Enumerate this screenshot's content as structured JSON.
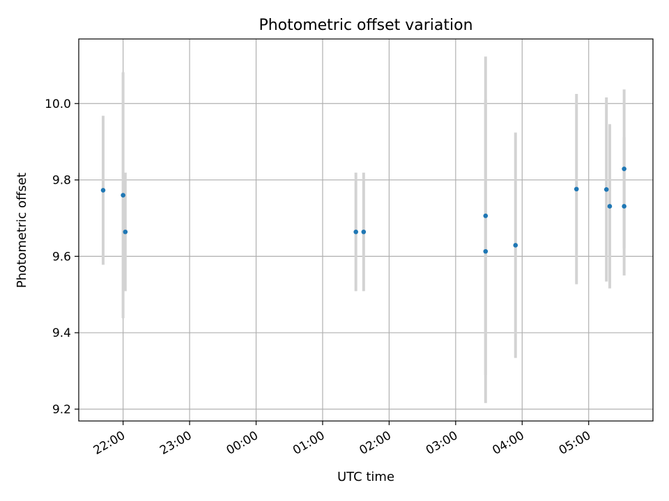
{
  "chart_data": {
    "type": "scatter",
    "title": "Photometric offset variation",
    "xlabel": "UTC time",
    "ylabel": "Photometric offset",
    "x_tick_labels": [
      "22:00",
      "23:00",
      "00:00",
      "01:00",
      "02:00",
      "03:00",
      "04:00",
      "05:00"
    ],
    "y_ticks": [
      9.2,
      9.4,
      9.6,
      9.8,
      10.0
    ],
    "y_tick_labels": [
      "9.2",
      "9.4",
      "9.6",
      "9.8",
      "10.0"
    ],
    "grid": true,
    "colors": {
      "marker": "#1f77b4",
      "errorbar": "#d3d3d3",
      "grid": "#b0b0b0"
    },
    "series": [
      {
        "points": [
          {
            "x": "21:42",
            "y": 9.773,
            "yerr": 0.195
          },
          {
            "x": "22:00",
            "y": 9.76,
            "yerr": 0.322
          },
          {
            "x": "22:02",
            "y": 9.664,
            "yerr": 0.155
          },
          {
            "x": "01:30",
            "y": 9.664,
            "yerr": 0.155
          },
          {
            "x": "01:37",
            "y": 9.664,
            "yerr": 0.155
          },
          {
            "x": "03:27",
            "y": 9.706,
            "yerr": 0.417
          },
          {
            "x": "03:27",
            "y": 9.613,
            "yerr": 0.397
          },
          {
            "x": "03:54",
            "y": 9.629,
            "yerr": 0.295
          },
          {
            "x": "04:49",
            "y": 9.776,
            "yerr": 0.249
          },
          {
            "x": "05:16",
            "y": 9.775,
            "yerr": 0.241
          },
          {
            "x": "05:19",
            "y": 9.731,
            "yerr": 0.215
          },
          {
            "x": "05:32",
            "y": 9.829,
            "yerr": 0.208
          },
          {
            "x": "05:32",
            "y": 9.731,
            "yerr": 0.181
          }
        ]
      }
    ]
  }
}
